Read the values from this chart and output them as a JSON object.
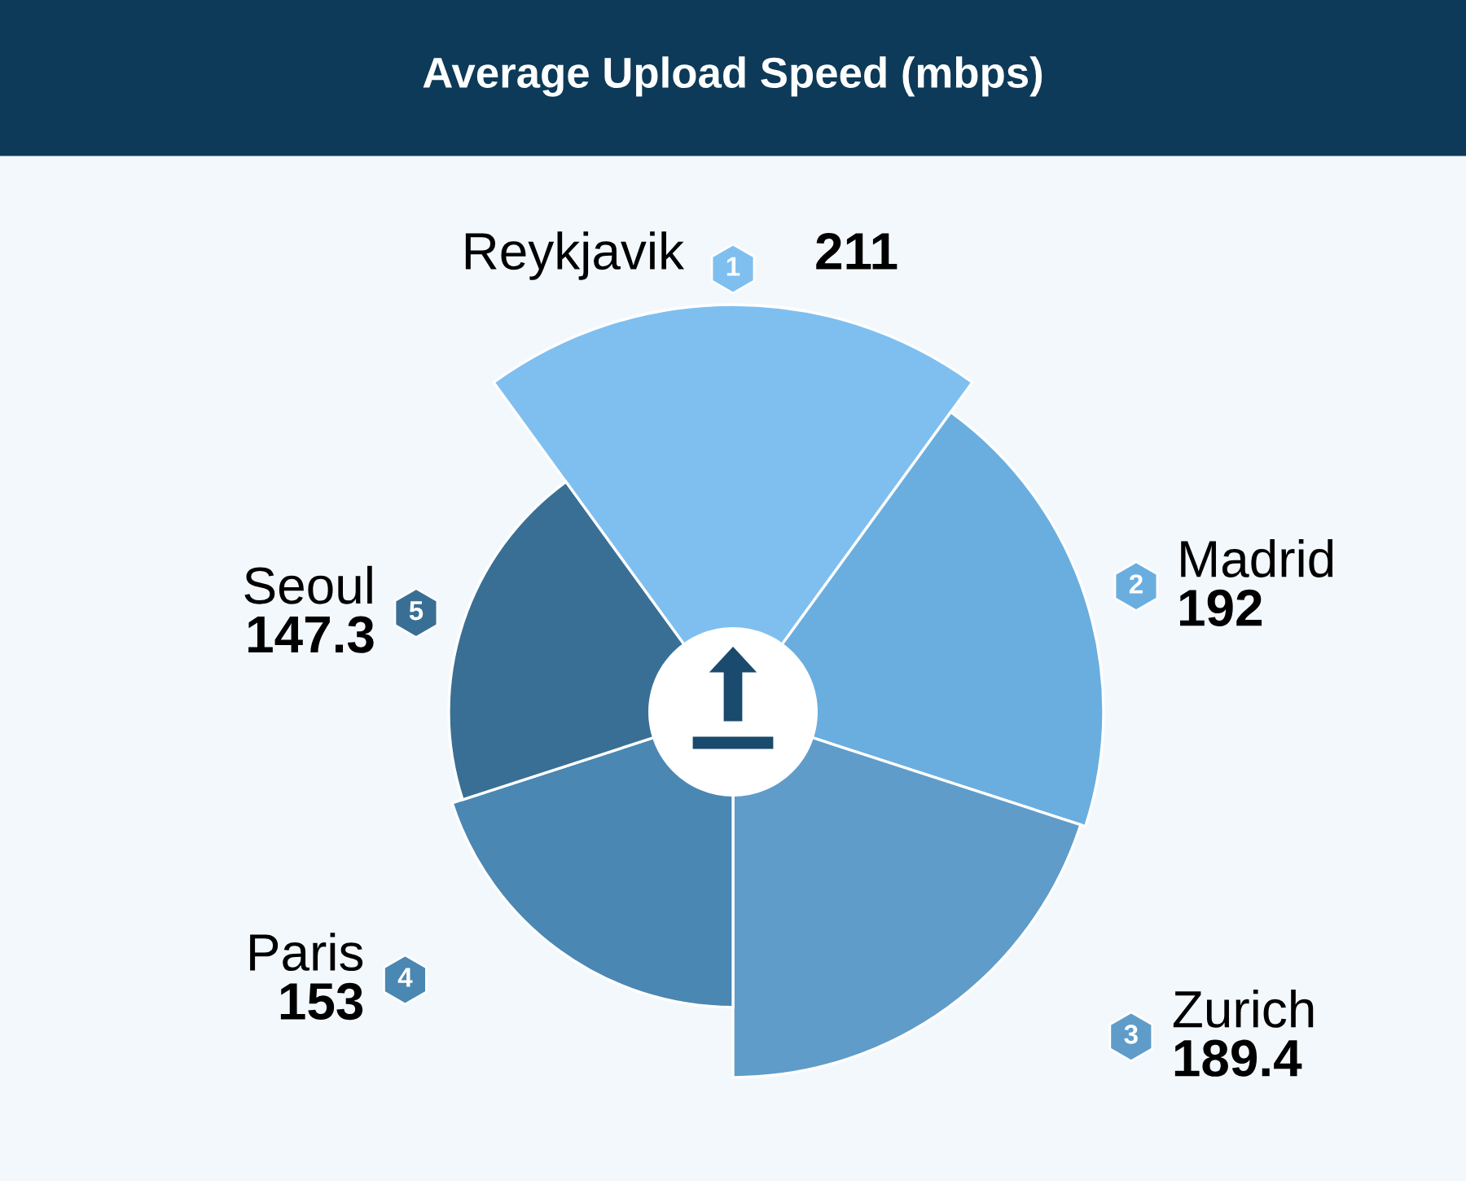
{
  "chart_data": {
    "type": "other",
    "title": "Average Upload Speed (mbps)",
    "categories": [
      "Reykjavik",
      "Madrid",
      "Zurich",
      "Paris",
      "Seoul"
    ],
    "values": [
      211,
      192,
      189.4,
      153,
      147.3
    ],
    "colors": [
      "#7fbff0",
      "#6aaee0",
      "#5f9cc9",
      "#4a87b3",
      "#3a6f95"
    ],
    "annotations": [
      "1",
      "2",
      "3",
      "4",
      "5"
    ],
    "data_labels": true
  }
}
